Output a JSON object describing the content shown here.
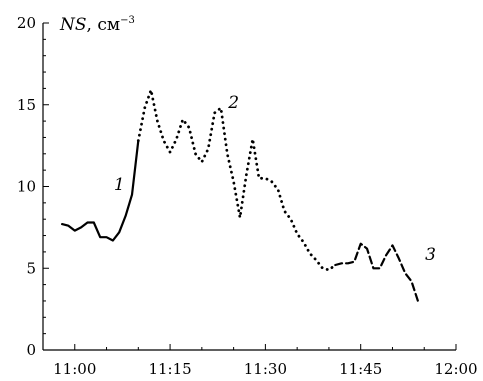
{
  "chart_data": {
    "type": "line",
    "ylabel": "NS, см⁻³",
    "ylabel_parts": {
      "var": "NS",
      "unit": ", см",
      "exp": "−3"
    },
    "x_ticks": [
      "11:00",
      "11:15",
      "11:30",
      "11:45",
      "12:00"
    ],
    "y_ticks": [
      "0",
      "5",
      "10",
      "15",
      "20"
    ],
    "xlim": [
      "10:55",
      "12:00"
    ],
    "ylim": [
      0,
      20
    ],
    "grid": false,
    "series": [
      {
        "name": "1",
        "style": "solid",
        "points": [
          [
            "10:58",
            7.7
          ],
          [
            "10:59",
            7.6
          ],
          [
            "11:00",
            7.3
          ],
          [
            "11:01",
            7.5
          ],
          [
            "11:02",
            7.8
          ],
          [
            "11:03",
            7.8
          ],
          [
            "11:04",
            6.9
          ],
          [
            "11:05",
            6.9
          ],
          [
            "11:06",
            6.7
          ],
          [
            "11:07",
            7.2
          ],
          [
            "11:08",
            8.2
          ],
          [
            "11:09",
            9.5
          ],
          [
            "11:10",
            12.8
          ]
        ]
      },
      {
        "name": "2",
        "style": "dotted",
        "points": [
          [
            "11:10",
            12.8
          ],
          [
            "11:11",
            14.8
          ],
          [
            "11:12",
            15.9
          ],
          [
            "11:13",
            14.0
          ],
          [
            "11:14",
            12.8
          ],
          [
            "11:15",
            12.1
          ],
          [
            "11:16",
            12.9
          ],
          [
            "11:17",
            14.1
          ],
          [
            "11:18",
            13.6
          ],
          [
            "11:19",
            12.0
          ],
          [
            "11:20",
            11.5
          ],
          [
            "11:21",
            12.3
          ],
          [
            "11:22",
            14.5
          ],
          [
            "11:23",
            14.8
          ],
          [
            "11:24",
            12.0
          ],
          [
            "11:25",
            10.3
          ],
          [
            "11:26",
            8.1
          ],
          [
            "11:27",
            10.7
          ],
          [
            "11:28",
            12.9
          ],
          [
            "11:29",
            10.5
          ],
          [
            "11:30",
            10.5
          ],
          [
            "11:31",
            10.3
          ],
          [
            "11:32",
            9.8
          ],
          [
            "11:33",
            8.5
          ],
          [
            "11:34",
            8.0
          ],
          [
            "11:35",
            7.1
          ],
          [
            "11:36",
            6.6
          ],
          [
            "11:37",
            5.9
          ],
          [
            "11:38",
            5.5
          ],
          [
            "11:39",
            5.0
          ],
          [
            "11:40",
            4.9
          ],
          [
            "11:41",
            5.2
          ]
        ]
      },
      {
        "name": "3",
        "style": "dashed",
        "points": [
          [
            "11:41",
            5.2
          ],
          [
            "11:42",
            5.3
          ],
          [
            "11:43",
            5.3
          ],
          [
            "11:44",
            5.4
          ],
          [
            "11:45",
            6.5
          ],
          [
            "11:46",
            6.2
          ],
          [
            "11:47",
            5.0
          ],
          [
            "11:48",
            5.0
          ],
          [
            "11:49",
            5.8
          ],
          [
            "11:50",
            6.4
          ],
          [
            "11:51",
            5.6
          ],
          [
            "11:52",
            4.7
          ],
          [
            "11:53",
            4.2
          ],
          [
            "11:54",
            3.0
          ]
        ]
      }
    ]
  }
}
